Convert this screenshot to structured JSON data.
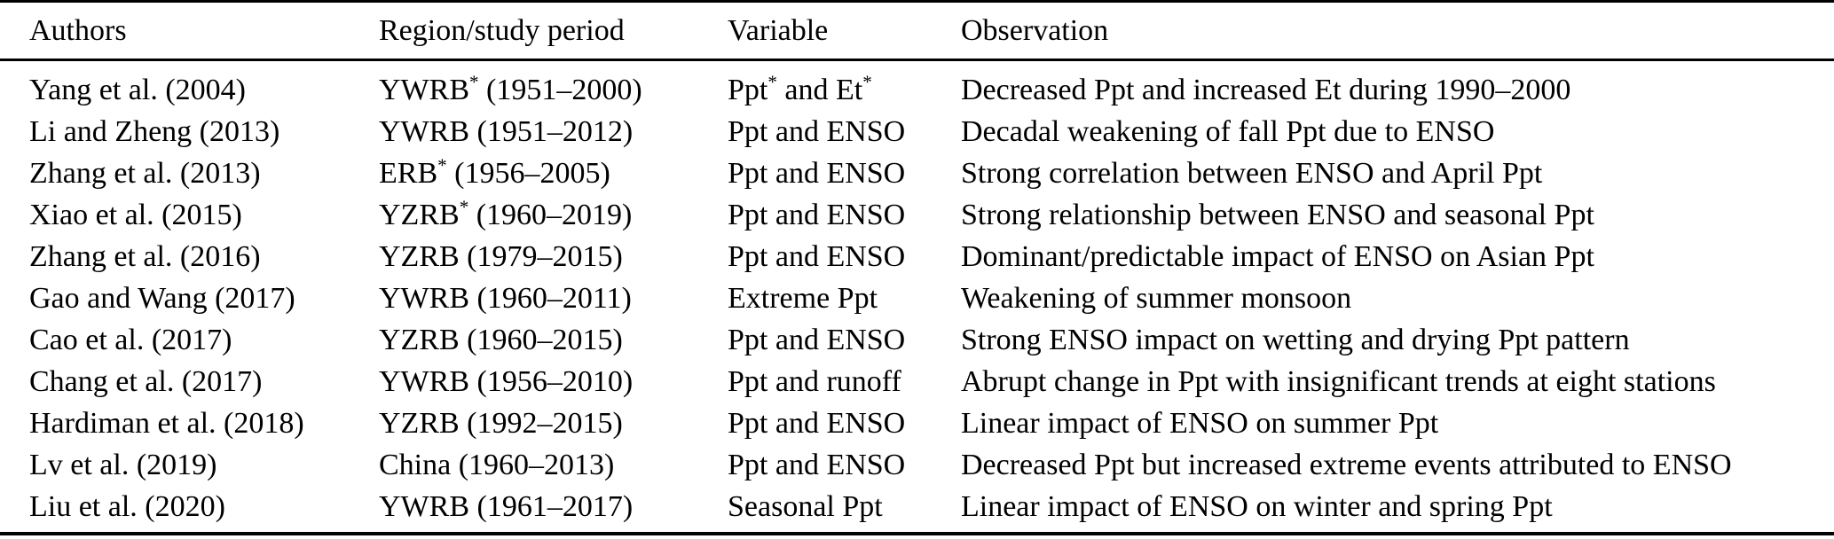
{
  "table": {
    "columns": [
      "Authors",
      "Region/study period",
      "Variable",
      "Observation"
    ],
    "rows": [
      {
        "authors": "Yang et al. (2004)",
        "region_period": "YWRB* (1951–2000)",
        "variable": "Ppt* and Et*",
        "observation": "Decreased Ppt and increased Et during 1990–2000"
      },
      {
        "authors": "Li and Zheng (2013)",
        "region_period": "YWRB (1951–2012)",
        "variable": "Ppt and ENSO",
        "observation": "Decadal weakening of fall Ppt due to ENSO"
      },
      {
        "authors": "Zhang et al. (2013)",
        "region_period": "ERB* (1956–2005)",
        "variable": "Ppt and ENSO",
        "observation": "Strong correlation between ENSO and April Ppt"
      },
      {
        "authors": "Xiao et al. (2015)",
        "region_period": "YZRB* (1960–2019)",
        "variable": "Ppt and ENSO",
        "observation": "Strong relationship between ENSO and seasonal Ppt"
      },
      {
        "authors": "Zhang et al. (2016)",
        "region_period": "YZRB (1979–2015)",
        "variable": "Ppt and ENSO",
        "observation": "Dominant/predictable impact of ENSO on Asian Ppt"
      },
      {
        "authors": "Gao and Wang (2017)",
        "region_period": "YWRB (1960–2011)",
        "variable": "Extreme Ppt",
        "observation": "Weakening of summer monsoon"
      },
      {
        "authors": "Cao et al. (2017)",
        "region_period": "YZRB (1960–2015)",
        "variable": "Ppt and ENSO",
        "observation": "Strong ENSO impact on wetting and drying Ppt pattern"
      },
      {
        "authors": "Chang et al. (2017)",
        "region_period": "YWRB (1956–2010)",
        "variable": "Ppt and runoff",
        "observation": "Abrupt change in Ppt with insignificant trends at eight stations"
      },
      {
        "authors": "Hardiman et al. (2018)",
        "region_period": "YZRB (1992–2015)",
        "variable": "Ppt and ENSO",
        "observation": "Linear impact of ENSO on summer Ppt"
      },
      {
        "authors": "Lv et al. (2019)",
        "region_period": "China (1960–2013)",
        "variable": "Ppt and ENSO",
        "observation": "Decreased Ppt but increased extreme events attributed to ENSO"
      },
      {
        "authors": "Liu et al. (2020)",
        "region_period": "YWRB (1961–2017)",
        "variable": "Seasonal Ppt",
        "observation": "Linear impact of ENSO on winter and spring Ppt"
      }
    ]
  }
}
